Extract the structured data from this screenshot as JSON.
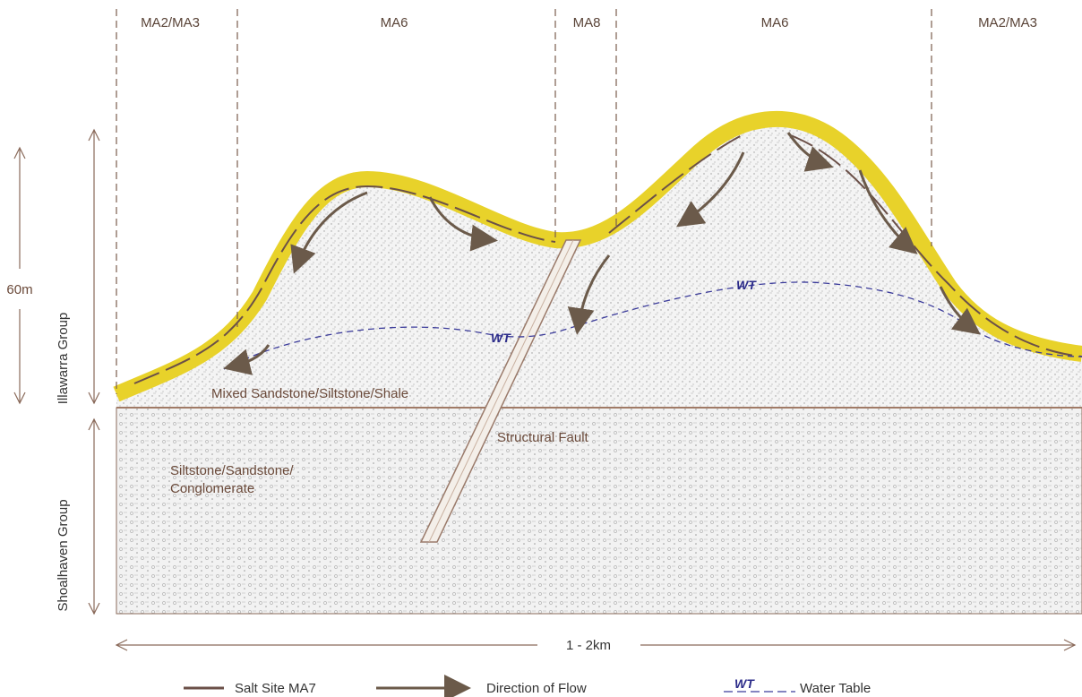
{
  "zones": [
    "MA2/MA3",
    "MA6",
    "MA8",
    "MA6",
    "MA2/MA3"
  ],
  "scale": {
    "height": "60m",
    "width": "1 - 2km"
  },
  "groups": [
    "Illawarra Group",
    "Shoalhaven Group"
  ],
  "layers": {
    "upper": "Mixed Sandstone/Siltstone/Shale",
    "fault": "Structural Fault",
    "lower": [
      "Siltstone/Sandstone/",
      "Conglomerate"
    ]
  },
  "water_table_label": "WT",
  "legend": [
    {
      "label": "Salt Site   MA7"
    },
    {
      "label": "Direction of Flow"
    },
    {
      "symbol": "WT",
      "label": "Water Table"
    }
  ]
}
